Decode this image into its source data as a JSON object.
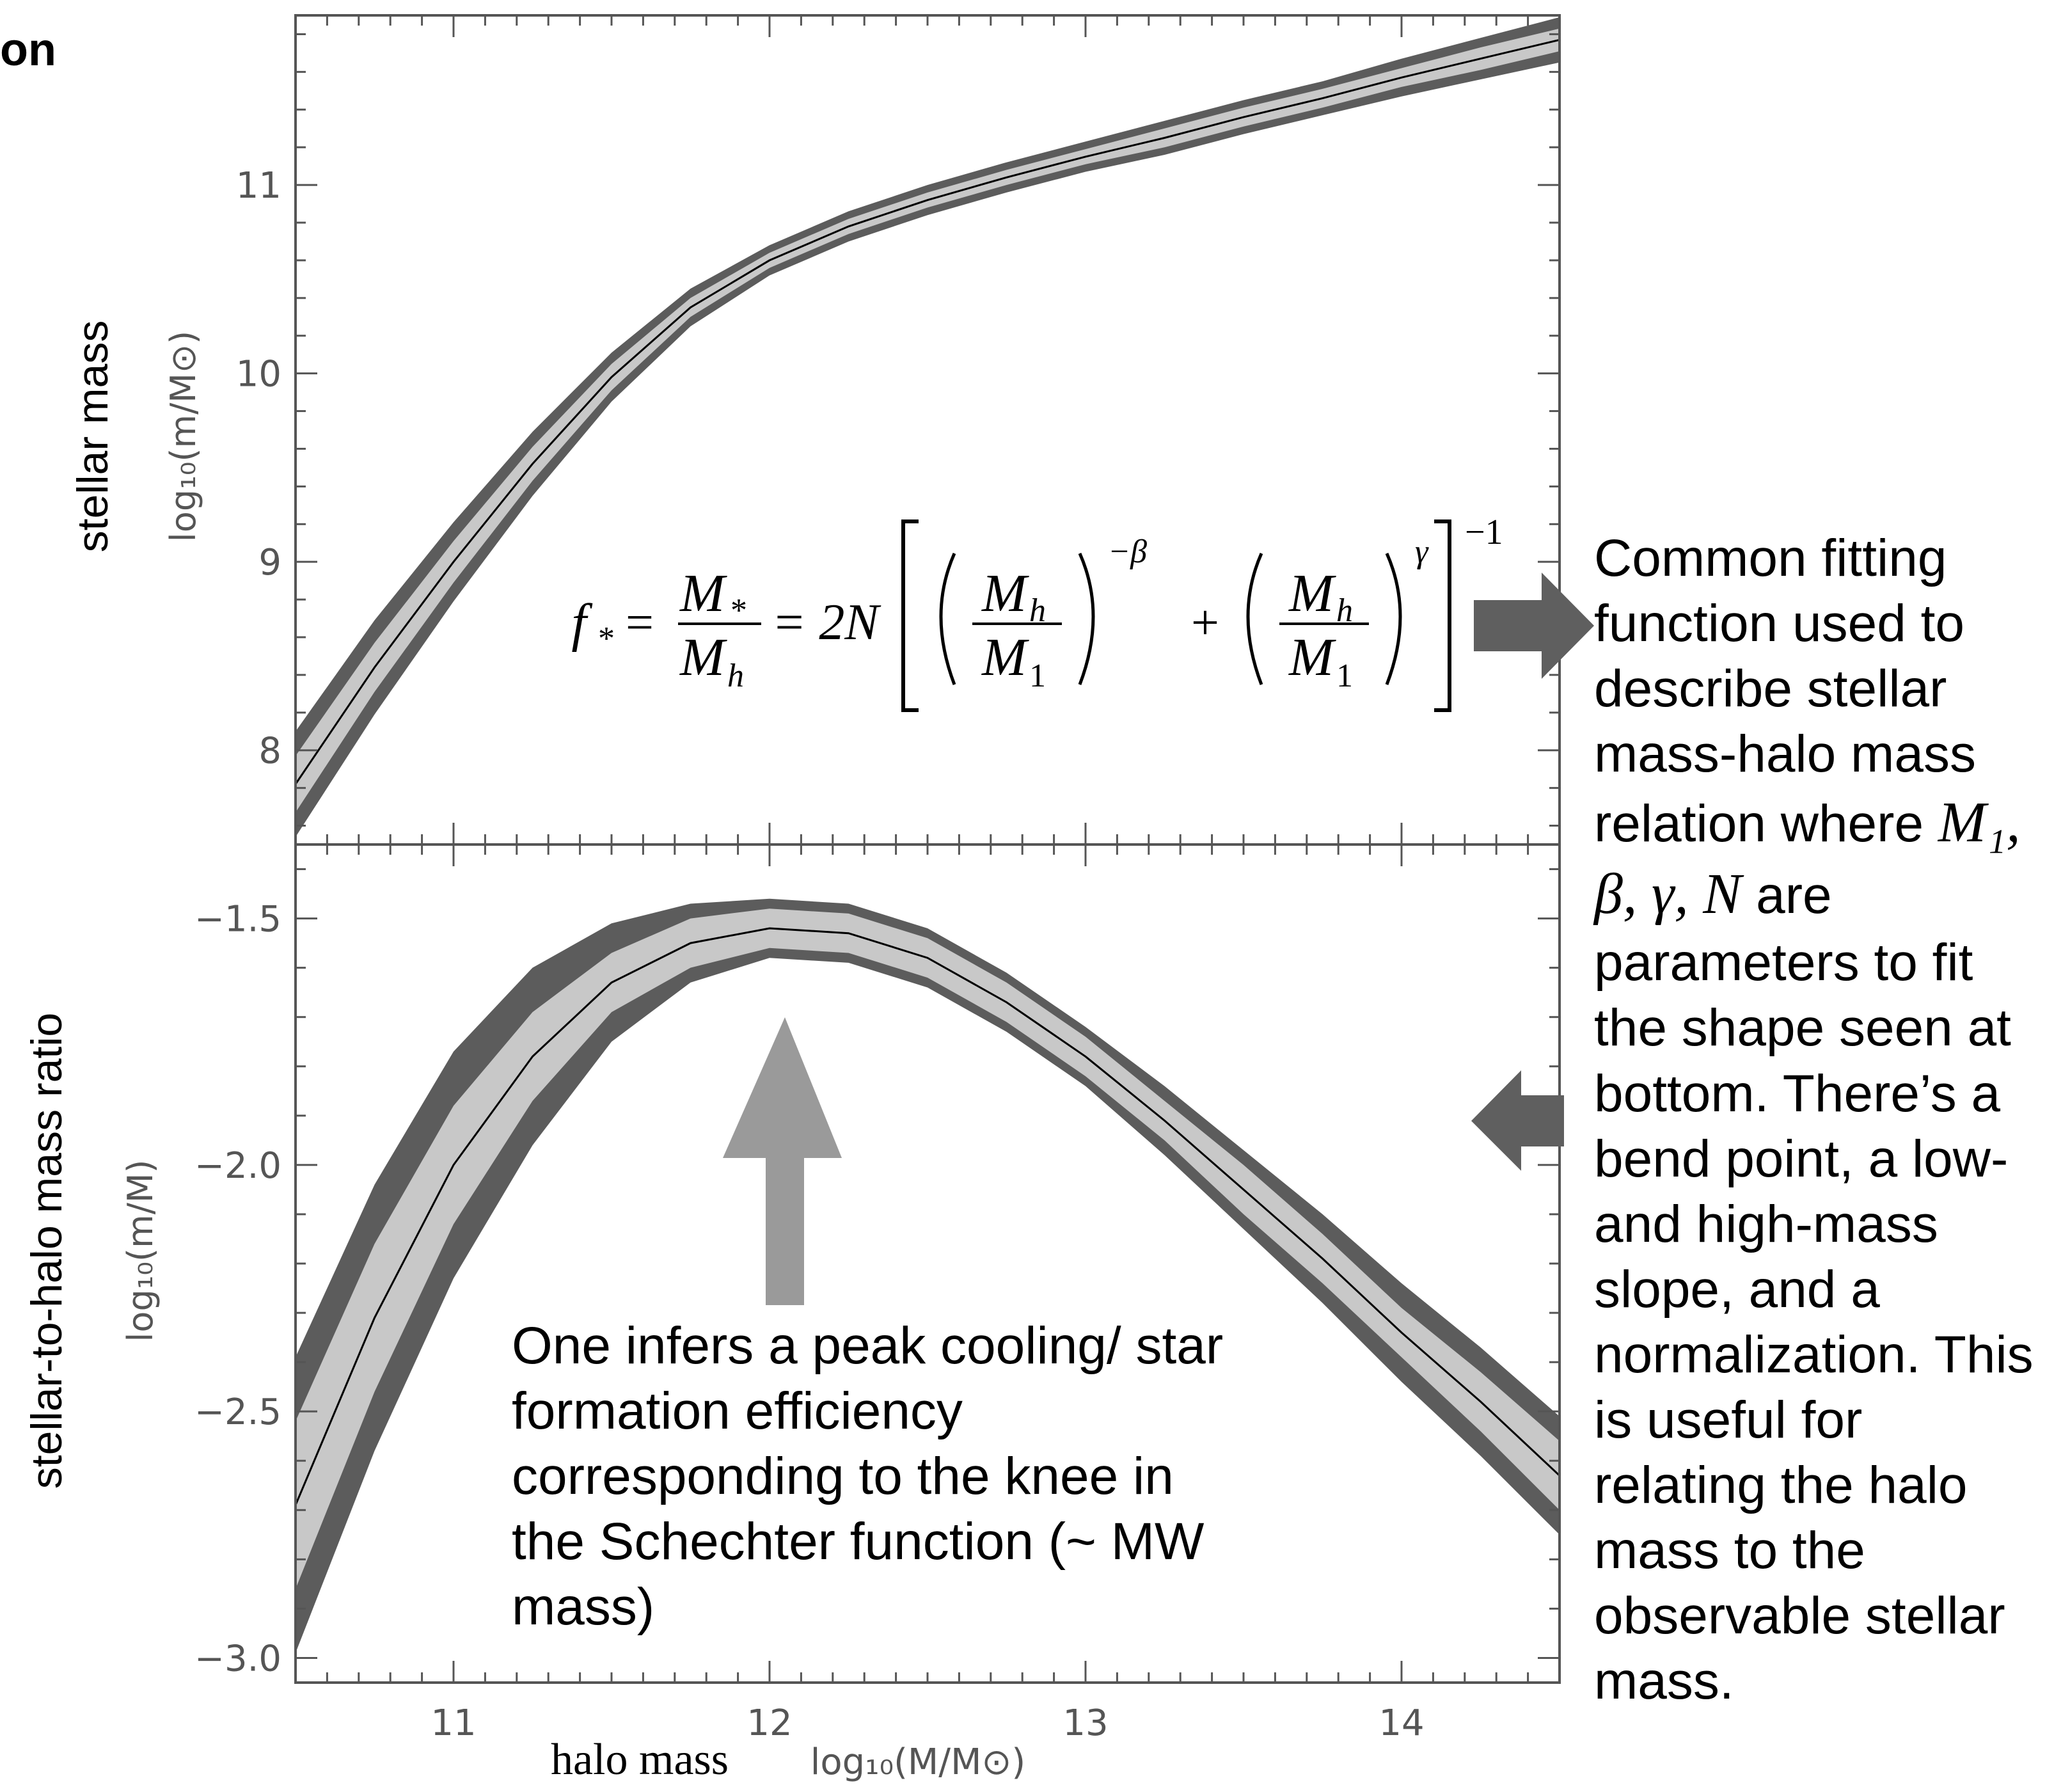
{
  "chart_data": [
    {
      "type": "area",
      "panel": "top",
      "ylabel_outer": "stellar mass",
      "ylabel_inner": "log₁₀(m/M⊙)",
      "xlim": [
        10.5,
        14.5
      ],
      "ylim": [
        7.5,
        11.9
      ],
      "ytick_labels": [
        "8",
        "9",
        "10",
        "11"
      ],
      "x": [
        10.5,
        10.75,
        11.0,
        11.25,
        11.5,
        11.75,
        12.0,
        12.25,
        12.5,
        12.75,
        13.0,
        13.25,
        13.5,
        13.75,
        14.0,
        14.25,
        14.5
      ],
      "series": [
        {
          "role": "median",
          "values": [
            7.82,
            8.44,
            9.0,
            9.52,
            9.98,
            10.35,
            10.6,
            10.78,
            10.92,
            11.04,
            11.15,
            11.25,
            11.36,
            11.46,
            11.57,
            11.67,
            11.77
          ]
        },
        {
          "role": "inner-band-half-width",
          "values": [
            0.15,
            0.13,
            0.11,
            0.09,
            0.07,
            0.05,
            0.04,
            0.04,
            0.04,
            0.04,
            0.04,
            0.05,
            0.05,
            0.05,
            0.05,
            0.06,
            0.06
          ]
        },
        {
          "role": "outer-band-half-width",
          "values": [
            0.28,
            0.25,
            0.21,
            0.17,
            0.13,
            0.1,
            0.08,
            0.08,
            0.08,
            0.08,
            0.08,
            0.09,
            0.09,
            0.09,
            0.1,
            0.11,
            0.12
          ]
        }
      ]
    },
    {
      "type": "area",
      "panel": "bottom",
      "ylabel_outer": "stellar-to-halo mass ratio",
      "ylabel_inner": "log₁₀(m/M)",
      "xlabel_outer": "halo mass",
      "xlabel_inner": "log₁₀(M/M⊙)",
      "xlim": [
        10.5,
        14.5
      ],
      "ylim": [
        -3.05,
        -1.35
      ],
      "xtick_labels": [
        "11",
        "12",
        "13",
        "14"
      ],
      "ytick_labels": [
        "−1.5",
        "−2.0",
        "−2.5",
        "−3.0"
      ],
      "x": [
        10.5,
        10.75,
        11.0,
        11.25,
        11.5,
        11.75,
        12.0,
        12.25,
        12.5,
        12.75,
        13.0,
        13.25,
        13.5,
        13.75,
        14.0,
        14.25,
        14.5
      ],
      "series": [
        {
          "role": "median",
          "values": [
            -2.69,
            -2.31,
            -2.0,
            -1.78,
            -1.63,
            -1.55,
            -1.52,
            -1.53,
            -1.58,
            -1.67,
            -1.78,
            -1.91,
            -2.05,
            -2.19,
            -2.34,
            -2.48,
            -2.63
          ]
        },
        {
          "role": "inner-band-half-width",
          "values": [
            0.17,
            0.15,
            0.12,
            0.09,
            0.06,
            0.05,
            0.04,
            0.04,
            0.04,
            0.04,
            0.04,
            0.04,
            0.05,
            0.05,
            0.05,
            0.06,
            0.07
          ]
        },
        {
          "role": "outer-band-half-width",
          "values": [
            0.3,
            0.27,
            0.23,
            0.18,
            0.12,
            0.08,
            0.06,
            0.06,
            0.06,
            0.06,
            0.06,
            0.07,
            0.08,
            0.09,
            0.1,
            0.11,
            0.12
          ]
        }
      ]
    }
  ],
  "colors": {
    "outer_band": "#5c5c5c",
    "inner_band": "#c8c8c8",
    "median_line": "#000000",
    "frame": "#555555",
    "arrow_dark": "#5f5f5f",
    "arrow_light": "#9a9a9a"
  },
  "clipped_heading": "on",
  "equation": {
    "lhs": "f",
    "lhs_sub": "*",
    "frac1_num": "M",
    "frac1_num_sub": "*",
    "frac1_den": "M",
    "frac1_den_sub": "h",
    "eq2": "= 2N",
    "ratio_num": "M",
    "ratio_num_sub": "h",
    "ratio_den": "M",
    "ratio_den_sub": "1",
    "exp1": "−β",
    "plus": "+",
    "exp2": "γ",
    "outer_exp": "−1"
  },
  "right_note": {
    "line1": "Common fitting function used to describe stellar mass-halo mass relation where ",
    "params": "M₁, β, γ, N",
    "line2": " are parameters to fit the shape seen at bottom. There’s a bend point, a low- and high-mass slope, and a normalization. This is useful for relating the halo mass to the observable stellar mass."
  },
  "bottom_note": "One infers a peak cooling/ star formation efficiency corresponding to the knee in the Schechter function (~ MW mass)"
}
